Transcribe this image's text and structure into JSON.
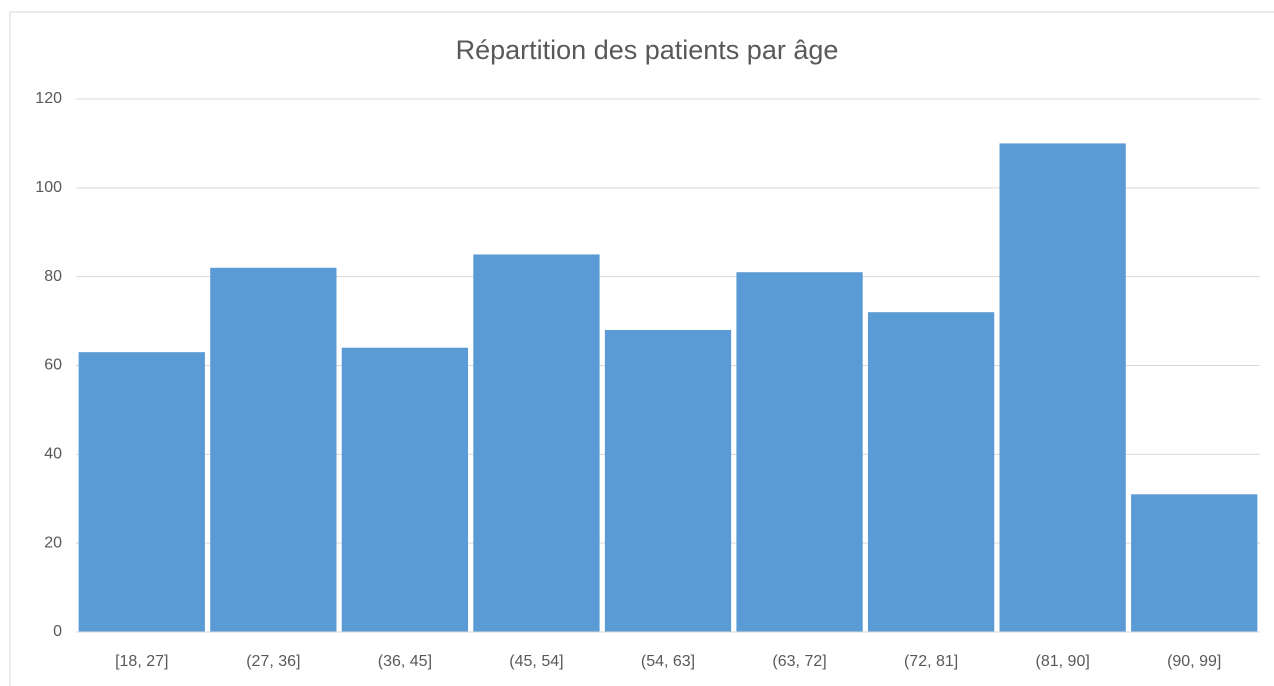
{
  "chart_data": {
    "type": "bar",
    "title": "Répartition des patients par âge",
    "categories": [
      "[18, 27]",
      "(27, 36]",
      "(36, 45]",
      "(45, 54]",
      "(54, 63]",
      "(63, 72]",
      "(72, 81]",
      "(81, 90]",
      "(90, 99]"
    ],
    "values": [
      63,
      82,
      64,
      85,
      68,
      81,
      72,
      110,
      31
    ],
    "color": "#5b9bd5",
    "ylim": [
      0,
      120
    ],
    "yticks": [
      0,
      20,
      40,
      60,
      80,
      100,
      120
    ],
    "grid": true
  }
}
